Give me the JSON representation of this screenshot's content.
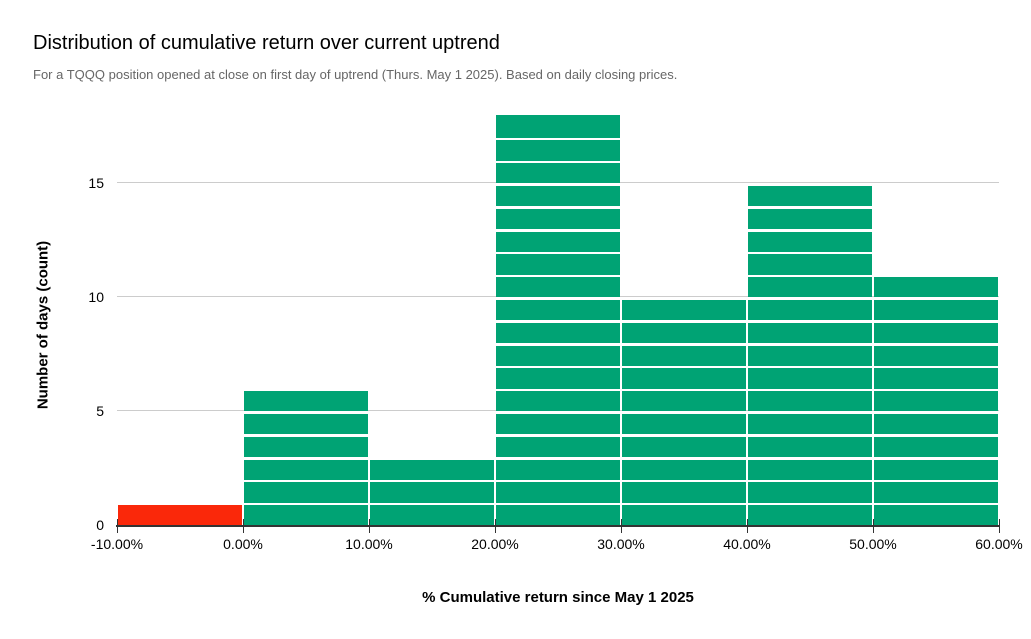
{
  "header": {
    "title": "Distribution of cumulative return over current uptrend",
    "subtitle": "For a TQQQ position opened at close on first day of uptrend (Thurs. May 1 2025). Based on daily closing prices."
  },
  "chart_data": {
    "type": "bar",
    "variant": "histogram-with-unit-segments",
    "title": "Distribution of cumulative return over current uptrend",
    "subtitle": "For a TQQQ position opened at close on first day of uptrend (Thurs. May 1 2025). Based on daily closing prices.",
    "xlabel": "% Cumulative return since May 1 2025",
    "ylabel": "Number of days (count)",
    "x_tick_labels": [
      "-10.00%",
      "0.00%",
      "10.00%",
      "20.00%",
      "30.00%",
      "40.00%",
      "50.00%",
      "60.00%"
    ],
    "y_ticks": [
      0,
      5,
      10,
      15
    ],
    "ylim": [
      0,
      18
    ],
    "grid": "horizontal gridlines at 5, 10, 15",
    "legend_position": "none",
    "bins": [
      {
        "from_pct": -10,
        "to_pct": 0,
        "count": 1,
        "color": "#fa280a"
      },
      {
        "from_pct": 0,
        "to_pct": 10,
        "count": 6,
        "color": "#00a374"
      },
      {
        "from_pct": 10,
        "to_pct": 20,
        "count": 3,
        "color": "#00a374"
      },
      {
        "from_pct": 20,
        "to_pct": 30,
        "count": 18,
        "color": "#00a374"
      },
      {
        "from_pct": 30,
        "to_pct": 40,
        "count": 10,
        "color": "#00a374"
      },
      {
        "from_pct": 40,
        "to_pct": 50,
        "count": 15,
        "color": "#00a374"
      },
      {
        "from_pct": 50,
        "to_pct": 60,
        "count": 11,
        "color": "#00a374"
      }
    ],
    "colors": {
      "gain_bar": "#00a374",
      "loss_bar": "#fa280a",
      "gridline": "#cccccc",
      "axis": "#333333",
      "unit_divider": "#ffffff"
    }
  }
}
